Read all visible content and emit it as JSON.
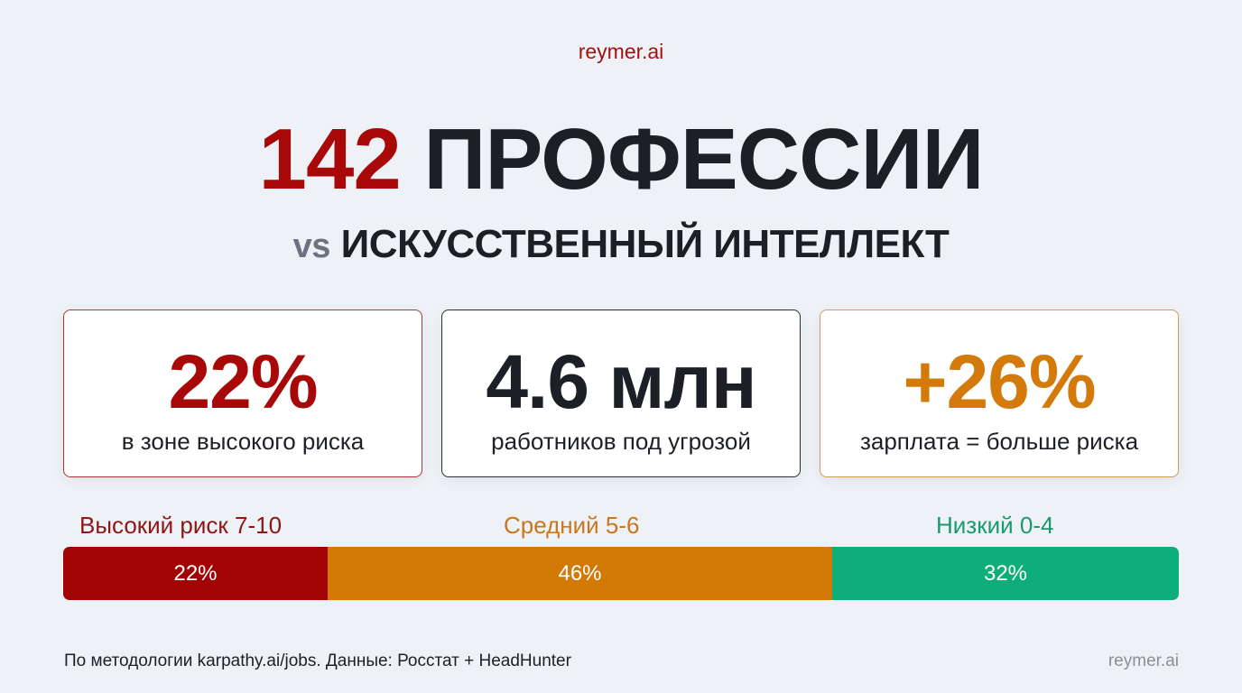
{
  "brand": {
    "top": "reymer.ai",
    "bottom": "reymer.ai"
  },
  "header": {
    "title_number": "142",
    "title_word": "ПРОФЕССИИ",
    "subtitle_vs": "vs",
    "subtitle_text": "ИСКУССТВЕННЫЙ ИНТЕЛЛЕКТ"
  },
  "cards": [
    {
      "value": "22%",
      "caption": "в зоне высокого риска",
      "color": "#a80808"
    },
    {
      "value": "4.6 млн",
      "caption": "работников под угрозой",
      "color": "#1c1f26"
    },
    {
      "value": "+26%",
      "caption": "зарплата = больше риска",
      "color": "#d37a0b"
    }
  ],
  "risk_bar": {
    "segments": [
      {
        "label": "Высокий риск 7-10",
        "value": "22%",
        "color": "#a20404"
      },
      {
        "label": "Средний 5-6",
        "value": "46%",
        "color": "#d27906"
      },
      {
        "label": "Низкий 0-4",
        "value": "32%",
        "color": "#0dae7a"
      }
    ]
  },
  "chart_data": {
    "type": "bar",
    "orientation": "horizontal-stacked",
    "categories": [
      "Высокий риск 7-10",
      "Средний 5-6",
      "Низкий 0-4"
    ],
    "values": [
      22,
      46,
      32
    ],
    "unit": "%",
    "colors": [
      "#a20404",
      "#d27906",
      "#0dae7a"
    ]
  },
  "footer": {
    "note": "По методологии karpathy.ai/jobs. Данные: Росстат + HeadHunter"
  }
}
